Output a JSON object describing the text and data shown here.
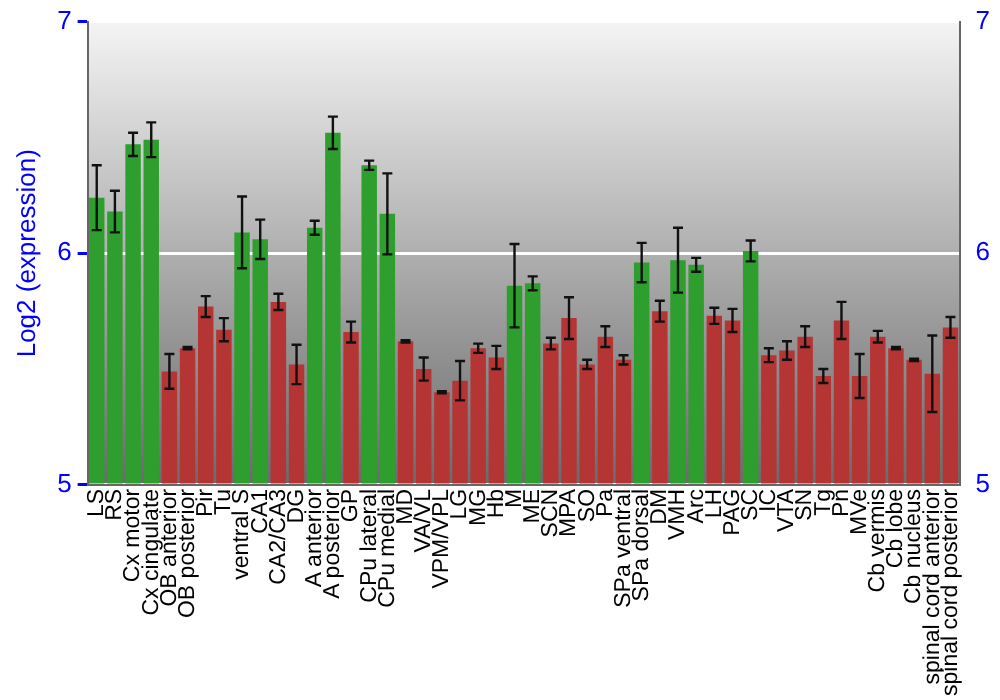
{
  "chart_data": {
    "type": "bar",
    "ylabel": "Log2 (expression)",
    "categories": [
      "LS",
      "RS",
      "Cx motor",
      "Cx cingulate",
      "OB anterior",
      "OB posterior",
      "Pir",
      "Tu",
      "ventral S",
      "CA1",
      "CA2/CA3",
      "DG",
      "A anterior",
      "A posterior",
      "GP",
      "CPu lateral",
      "CPu medial",
      "MD",
      "VA/VL",
      "VPM/VPL",
      "LG",
      "MG",
      "Hb",
      "M",
      "ME",
      "SCN",
      "MPA",
      "SO",
      "Pa",
      "SPa ventral",
      "SPa dorsal",
      "DM",
      "VMH",
      "Arc",
      "LH",
      "PAG",
      "SC",
      "IC",
      "VTA",
      "SN",
      "Tg",
      "Pn",
      "MVe",
      "Cb vermis",
      "Cb lobe",
      "Cb nucleus",
      "spinal cord anterior",
      "spinal cord posterior"
    ],
    "values": [
      6.24,
      6.18,
      6.47,
      6.49,
      5.49,
      5.59,
      5.77,
      5.67,
      6.09,
      6.06,
      5.79,
      5.52,
      6.11,
      6.52,
      5.66,
      6.38,
      6.17,
      5.62,
      5.5,
      5.4,
      5.45,
      5.59,
      5.55,
      5.86,
      5.87,
      5.61,
      5.72,
      5.52,
      5.64,
      5.54,
      5.96,
      5.75,
      5.97,
      5.95,
      5.73,
      5.71,
      6.01,
      5.56,
      5.58,
      5.64,
      5.47,
      5.71,
      5.47,
      5.64,
      5.59,
      5.54,
      5.48,
      5.68
    ],
    "errors": [
      0.14,
      0.09,
      0.05,
      0.075,
      0.075,
      0.005,
      0.045,
      0.05,
      0.155,
      0.085,
      0.035,
      0.085,
      0.03,
      0.07,
      0.045,
      0.02,
      0.175,
      0.005,
      0.05,
      0.005,
      0.085,
      0.02,
      0.05,
      0.18,
      0.03,
      0.025,
      0.09,
      0.02,
      0.045,
      0.02,
      0.085,
      0.045,
      0.14,
      0.03,
      0.035,
      0.05,
      0.045,
      0.03,
      0.04,
      0.045,
      0.03,
      0.08,
      0.095,
      0.025,
      0.005,
      0.005,
      0.165,
      0.045
    ],
    "colors": [
      "#2e9e2e",
      "#2e9e2e",
      "#2e9e2e",
      "#2e9e2e",
      "#b53535",
      "#b53535",
      "#b53535",
      "#b53535",
      "#2e9e2e",
      "#2e9e2e",
      "#b53535",
      "#b53535",
      "#2e9e2e",
      "#2e9e2e",
      "#b53535",
      "#2e9e2e",
      "#2e9e2e",
      "#b53535",
      "#b53535",
      "#b53535",
      "#b53535",
      "#b53535",
      "#b53535",
      "#2e9e2e",
      "#2e9e2e",
      "#b53535",
      "#b53535",
      "#b53535",
      "#b53535",
      "#b53535",
      "#2e9e2e",
      "#b53535",
      "#2e9e2e",
      "#2e9e2e",
      "#b53535",
      "#b53535",
      "#2e9e2e",
      "#b53535",
      "#b53535",
      "#b53535",
      "#b53535",
      "#b53535",
      "#b53535",
      "#b53535",
      "#b53535",
      "#b53535",
      "#b53535",
      "#b53535"
    ],
    "ylim": [
      5,
      7
    ],
    "yticks": [
      5,
      6,
      7
    ],
    "y2lim": [
      5,
      7
    ],
    "y2ticks": [
      5,
      6,
      7
    ],
    "grid": "y",
    "legend": false
  }
}
